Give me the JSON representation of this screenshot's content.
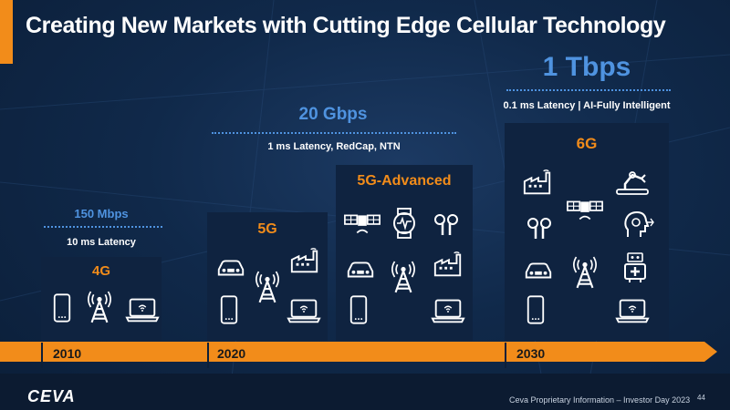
{
  "title": "Creating New Markets with Cutting Edge Cellular Technology",
  "accent_color": "#f28c1a",
  "speed_color": "#4f93e0",
  "generations": [
    {
      "label": "4G",
      "speed": "150 Mbps",
      "latency": "10 ms Latency",
      "icons": [
        "smartphone-icon",
        "cell-tower-icon",
        "laptop-icon"
      ]
    },
    {
      "label": "5G",
      "speed": "",
      "latency": "",
      "icons": [
        "car-icon",
        "cell-tower-icon",
        "factory-icon",
        "smartphone-icon",
        "laptop-icon"
      ]
    },
    {
      "label": "5G-Advanced",
      "speed": "20 Gbps",
      "latency": "1 ms Latency, RedCap, NTN",
      "icons": [
        "satellite-icon",
        "smartwatch-icon",
        "earbuds-icon",
        "car-icon",
        "cell-tower-icon",
        "factory-icon",
        "smartphone-icon",
        "laptop-icon"
      ]
    },
    {
      "label": "6G",
      "speed": "1 Tbps",
      "latency": "0.1 ms Latency | AI-Fully Intelligent",
      "icons": [
        "factory-icon",
        "robot-arm-icon",
        "satellite-icon",
        "earbuds-icon",
        "ai-head-icon",
        "car-icon",
        "cell-tower-icon",
        "medical-robot-icon",
        "smartphone-icon",
        "laptop-icon"
      ]
    }
  ],
  "timeline": {
    "years": [
      "2010",
      "2020",
      "2030"
    ]
  },
  "footer": {
    "logo": "CEVA",
    "text": "Ceva Proprietary Information – Investor Day 2023",
    "page": "44"
  }
}
